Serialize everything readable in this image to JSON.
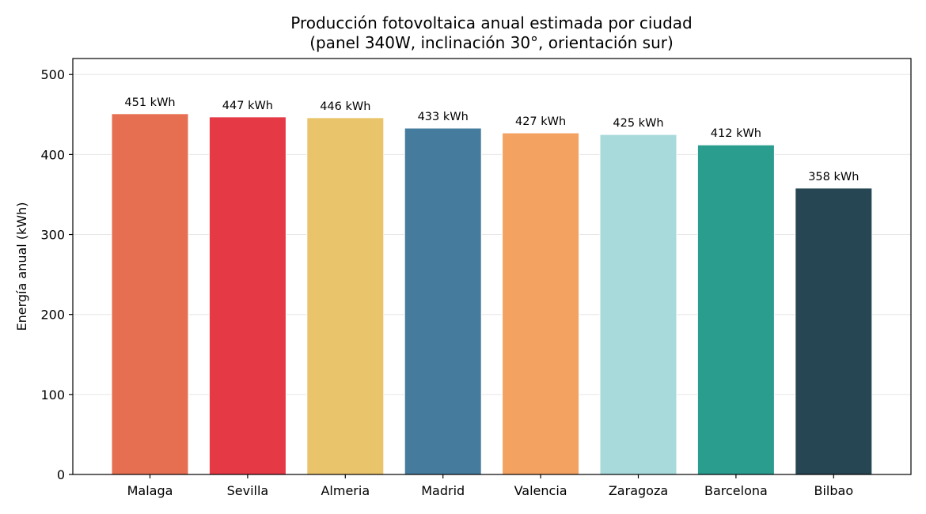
{
  "chart_data": {
    "type": "bar",
    "title_line1": "Producción fotovoltaica anual estimada por ciudad",
    "title_line2": "(panel 340W, inclinación 30°, orientación sur)",
    "xlabel": "",
    "ylabel": "Energía anual (kWh)",
    "ylim": [
      0,
      520
    ],
    "yticks": [
      0,
      100,
      200,
      300,
      400,
      500
    ],
    "grid": "horizontal",
    "categories": [
      "Malaga",
      "Sevilla",
      "Almeria",
      "Madrid",
      "Valencia",
      "Zaragoza",
      "Barcelona",
      "Bilbao"
    ],
    "values": [
      451,
      447,
      446,
      433,
      427,
      425,
      412,
      358
    ],
    "data_labels": [
      "451 kWh",
      "447 kWh",
      "446 kWh",
      "433 kWh",
      "427 kWh",
      "425 kWh",
      "412 kWh",
      "358 kWh"
    ],
    "colors": [
      "#e76f51",
      "#e63946",
      "#e9c46a",
      "#457b9d",
      "#f4a261",
      "#a8dadc",
      "#2a9d8f",
      "#264653"
    ]
  }
}
